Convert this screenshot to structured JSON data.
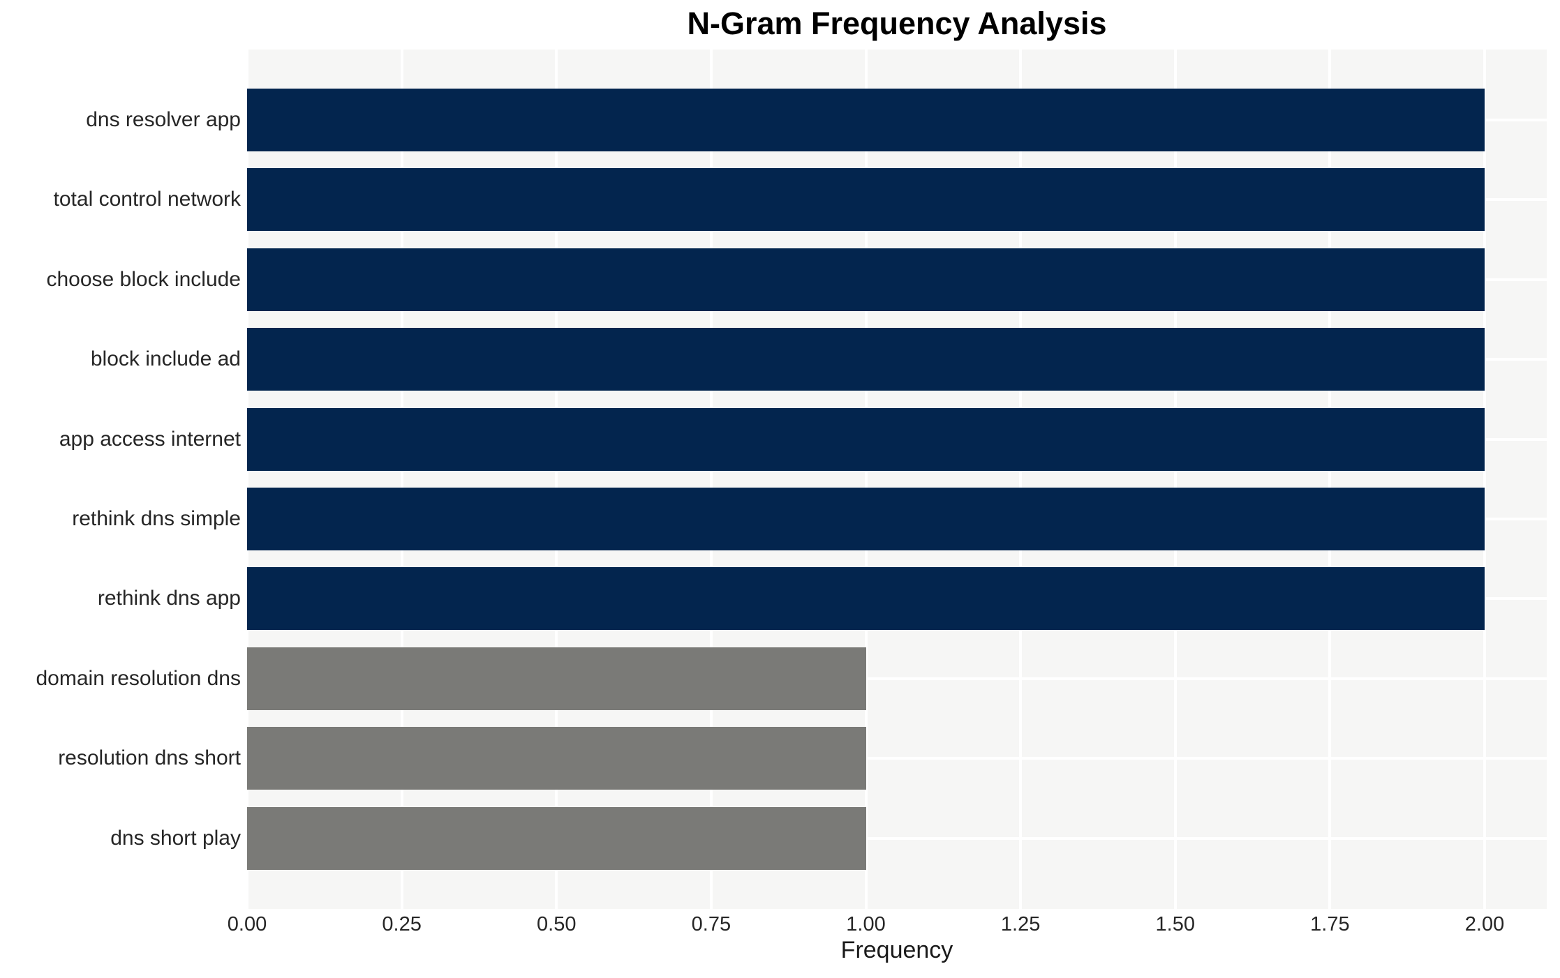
{
  "chart_data": {
    "type": "bar",
    "orientation": "horizontal",
    "title": "N-Gram Frequency Analysis",
    "xlabel": "Frequency",
    "ylabel": "",
    "categories": [
      "dns resolver app",
      "total control network",
      "choose block include",
      "block include ad",
      "app access internet",
      "rethink dns simple",
      "rethink dns app",
      "domain resolution dns",
      "resolution dns short",
      "dns short play"
    ],
    "values": [
      2,
      2,
      2,
      2,
      2,
      2,
      2,
      1,
      1,
      1
    ],
    "bar_colors": [
      "#03254e",
      "#03254e",
      "#03254e",
      "#03254e",
      "#03254e",
      "#03254e",
      "#03254e",
      "#7a7a77",
      "#7a7a77",
      "#7a7a77"
    ],
    "xlim": [
      0,
      2.1
    ],
    "xticks": [
      {
        "value": 0.0,
        "label": "0.00"
      },
      {
        "value": 0.25,
        "label": "0.25"
      },
      {
        "value": 0.5,
        "label": "0.50"
      },
      {
        "value": 0.75,
        "label": "0.75"
      },
      {
        "value": 1.0,
        "label": "1.00"
      },
      {
        "value": 1.25,
        "label": "1.25"
      },
      {
        "value": 1.5,
        "label": "1.50"
      },
      {
        "value": 1.75,
        "label": "1.75"
      },
      {
        "value": 2.0,
        "label": "2.00"
      }
    ],
    "grid": true,
    "legend": "none",
    "colors": {
      "high_frequency_bar": "#03254e",
      "low_frequency_bar": "#7a7a77",
      "plot_background": "#f6f6f5",
      "gridline": "#ffffff",
      "title_text": "#000000",
      "axis_text": "#262626"
    }
  }
}
